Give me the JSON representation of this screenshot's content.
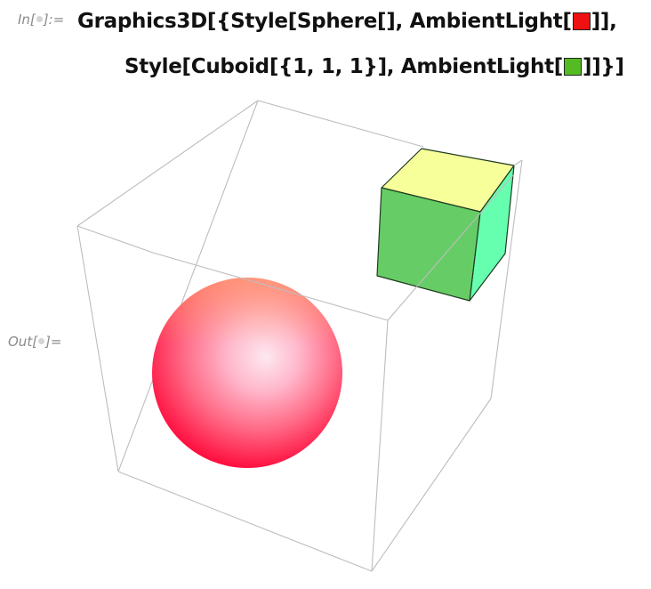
{
  "cell": {
    "in_label_prefix": "In[",
    "in_label_suffix": "]:=",
    "out_label_prefix": "Out[",
    "out_label_suffix": "]="
  },
  "input": {
    "line1_prefix": "Graphics3D[{Style[Sphere[], AmbientLight[",
    "line1_suffix": "]],",
    "line2_prefix": "Style[Cuboid[{1, 1, 1}], AmbientLight[",
    "line2_suffix": "]]}]",
    "swatch1_color": "#ee1111",
    "swatch2_color": "#55bb22"
  },
  "output": {
    "sphere_light_color": "#ff1a3a",
    "cuboid_front_color": "#66cc66",
    "cuboid_top_color": "#f6ff99",
    "cuboid_side_color": "#66ffb0",
    "box_edge_color": "#bdbdbd"
  }
}
